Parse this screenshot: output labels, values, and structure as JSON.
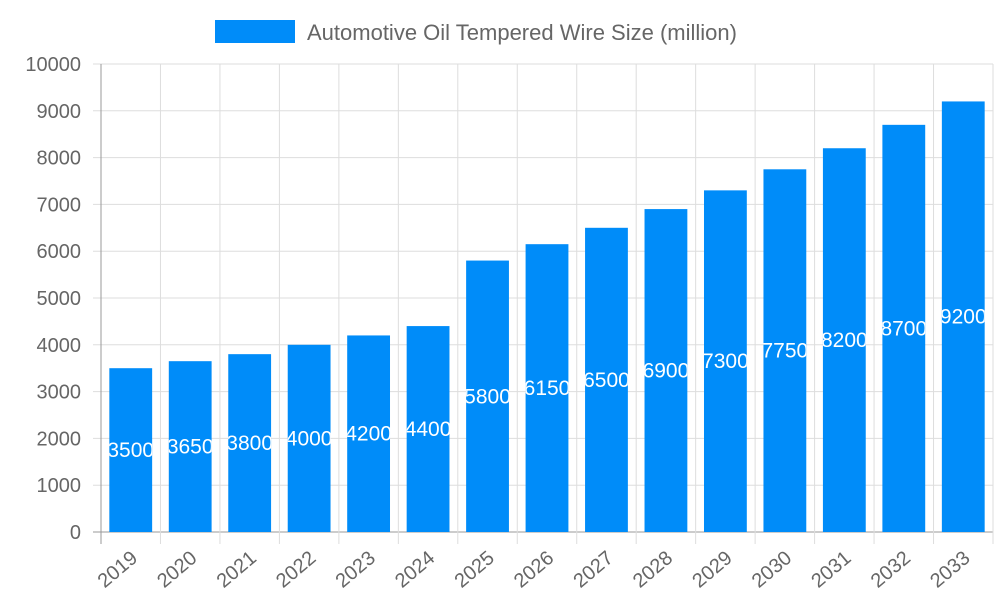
{
  "chart_data": {
    "type": "bar",
    "title": "",
    "xlabel": "",
    "ylabel": "",
    "legend": {
      "position": "top",
      "entries": [
        "Automotive Oil Tempered Wire Size (million)"
      ]
    },
    "categories": [
      "2019",
      "2020",
      "2021",
      "2022",
      "2023",
      "2024",
      "2025",
      "2026",
      "2027",
      "2028",
      "2029",
      "2030",
      "2031",
      "2032",
      "2033"
    ],
    "series": [
      {
        "name": "Automotive Oil Tempered Wire Size (million)",
        "values": [
          3500,
          3650,
          3800,
          4000,
          4200,
          4400,
          5800,
          6150,
          6500,
          6900,
          7300,
          7750,
          8200,
          8700,
          9200
        ],
        "color": "#008cf9"
      }
    ],
    "ylim": [
      0,
      10000
    ],
    "yticks": [
      0,
      1000,
      2000,
      3000,
      4000,
      5000,
      6000,
      7000,
      8000,
      9000,
      10000
    ],
    "grid": true,
    "data_labels": "inside-center, white"
  }
}
